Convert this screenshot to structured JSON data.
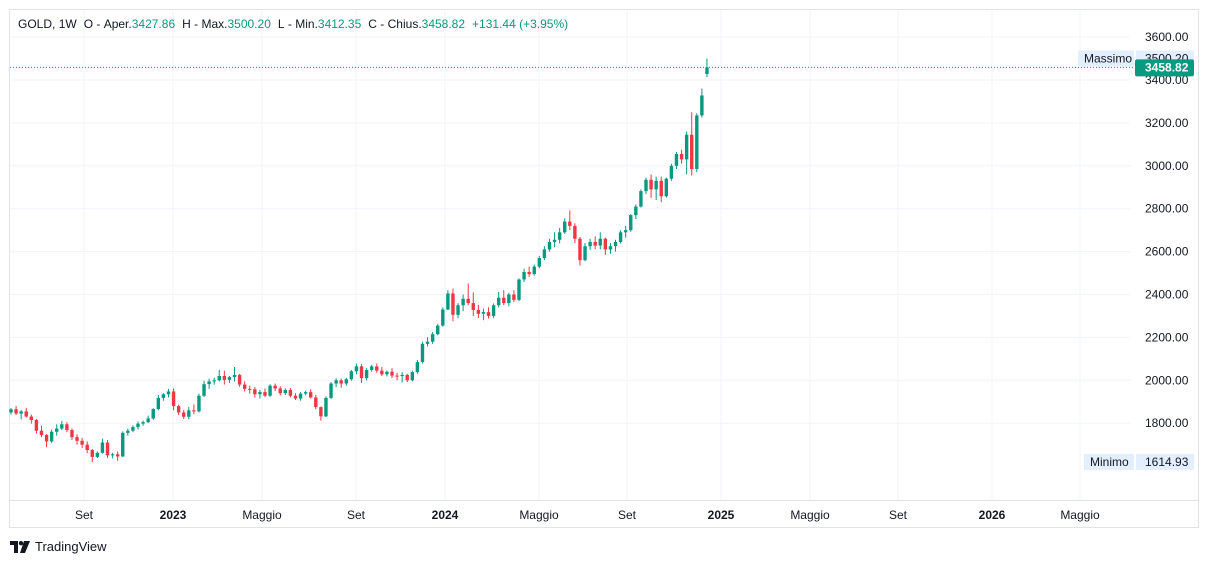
{
  "legend": {
    "symbol": "GOLD",
    "interval": "1W",
    "open_label": "O",
    "open_prefix": "Aper.",
    "open": "3427.86",
    "high_label": "H",
    "high_prefix": "Max.",
    "high": "3500.20",
    "low_label": "L",
    "low_prefix": "Min.",
    "low": "3412.35",
    "close_label": "C",
    "close_prefix": "Chius.",
    "close": "3458.82",
    "change": "+131.44 (+3.95%)"
  },
  "price_axis": {
    "ticks": [
      "3600.00",
      "3400.00",
      "3200.00",
      "3000.00",
      "2800.00",
      "2600.00",
      "2400.00",
      "2200.00",
      "2000.00",
      "1800.00"
    ],
    "high_marker": {
      "label": "Massimo",
      "value": "3500.20"
    },
    "low_marker": {
      "label": "Minimo",
      "value": "1614.93"
    },
    "last_price": "3458.82"
  },
  "time_axis": {
    "labels": [
      "Set",
      "2023",
      "Maggio",
      "Set",
      "2024",
      "Maggio",
      "Set",
      "2025",
      "Maggio",
      "Set",
      "2026",
      "Maggio"
    ],
    "bold_labels": [
      "2023",
      "2024",
      "2025",
      "2026"
    ]
  },
  "colors": {
    "up": "#089981",
    "down": "#f23645",
    "grid": "#f0f3fa",
    "marker_bg": "#e3effd"
  },
  "branding": {
    "name": "TradingView",
    "logo_icon": "tradingview-logo-icon"
  },
  "chart_data": {
    "type": "candlestick",
    "interval": "weekly",
    "x_start_week": "2022-06-27",
    "ylim": [
      1560,
      3660
    ],
    "grid": true,
    "ohlc": [
      [
        1850,
        1870,
        1840,
        1865
      ],
      [
        1865,
        1880,
        1838,
        1845
      ],
      [
        1845,
        1862,
        1818,
        1855
      ],
      [
        1855,
        1872,
        1826,
        1831
      ],
      [
        1831,
        1840,
        1798,
        1815
      ],
      [
        1815,
        1820,
        1752,
        1765
      ],
      [
        1765,
        1788,
        1735,
        1745
      ],
      [
        1745,
        1750,
        1688,
        1715
      ],
      [
        1715,
        1770,
        1708,
        1760
      ],
      [
        1760,
        1795,
        1742,
        1775
      ],
      [
        1775,
        1810,
        1768,
        1795
      ],
      [
        1795,
        1805,
        1758,
        1768
      ],
      [
        1768,
        1775,
        1722,
        1735
      ],
      [
        1735,
        1748,
        1700,
        1718
      ],
      [
        1718,
        1732,
        1685,
        1700
      ],
      [
        1700,
        1715,
        1660,
        1675
      ],
      [
        1675,
        1680,
        1618,
        1643
      ],
      [
        1643,
        1668,
        1638,
        1662
      ],
      [
        1662,
        1728,
        1658,
        1710
      ],
      [
        1710,
        1722,
        1638,
        1650
      ],
      [
        1650,
        1662,
        1636,
        1655
      ],
      [
        1655,
        1668,
        1625,
        1645
      ],
      [
        1645,
        1762,
        1642,
        1755
      ],
      [
        1755,
        1775,
        1742,
        1765
      ],
      [
        1765,
        1790,
        1758,
        1782
      ],
      [
        1782,
        1808,
        1770,
        1798
      ],
      [
        1798,
        1812,
        1788,
        1805
      ],
      [
        1805,
        1835,
        1800,
        1822
      ],
      [
        1822,
        1870,
        1816,
        1866
      ],
      [
        1866,
        1932,
        1860,
        1918
      ],
      [
        1918,
        1940,
        1905,
        1935
      ],
      [
        1935,
        1960,
        1920,
        1948
      ],
      [
        1948,
        1962,
        1860,
        1880
      ],
      [
        1880,
        1886,
        1838,
        1850
      ],
      [
        1850,
        1862,
        1820,
        1830
      ],
      [
        1830,
        1875,
        1818,
        1860
      ],
      [
        1860,
        1888,
        1842,
        1855
      ],
      [
        1855,
        1938,
        1850,
        1928
      ],
      [
        1928,
        1998,
        1922,
        1982
      ],
      [
        1982,
        2008,
        1960,
        1995
      ],
      [
        1995,
        2012,
        1980,
        2000
      ],
      [
        2000,
        2048,
        1995,
        2020
      ],
      [
        2020,
        2045,
        1980,
        2002
      ],
      [
        2002,
        2020,
        1988,
        2015
      ],
      [
        2015,
        2062,
        1995,
        2025
      ],
      [
        2025,
        2030,
        1970,
        1980
      ],
      [
        1980,
        1995,
        1948,
        1960
      ],
      [
        1960,
        1975,
        1938,
        1958
      ],
      [
        1958,
        1968,
        1920,
        1935
      ],
      [
        1935,
        1955,
        1915,
        1945
      ],
      [
        1945,
        1962,
        1922,
        1928
      ],
      [
        1928,
        1982,
        1922,
        1975
      ],
      [
        1975,
        1985,
        1950,
        1962
      ],
      [
        1962,
        1972,
        1930,
        1940
      ],
      [
        1940,
        1962,
        1932,
        1955
      ],
      [
        1955,
        1965,
        1920,
        1928
      ],
      [
        1928,
        1940,
        1908,
        1915
      ],
      [
        1915,
        1945,
        1905,
        1938
      ],
      [
        1938,
        1952,
        1930,
        1945
      ],
      [
        1945,
        1958,
        1915,
        1920
      ],
      [
        1920,
        1932,
        1865,
        1875
      ],
      [
        1875,
        1878,
        1812,
        1832
      ],
      [
        1832,
        1925,
        1828,
        1918
      ],
      [
        1918,
        1992,
        1912,
        1985
      ],
      [
        1985,
        2010,
        1968,
        2000
      ],
      [
        2000,
        2008,
        1965,
        1985
      ],
      [
        1985,
        2012,
        1975,
        2005
      ],
      [
        2005,
        2048,
        1998,
        2042
      ],
      [
        2042,
        2078,
        2028,
        2065
      ],
      [
        2065,
        2075,
        1988,
        2010
      ],
      [
        2010,
        2058,
        2000,
        2048
      ],
      [
        2048,
        2072,
        2040,
        2065
      ],
      [
        2065,
        2078,
        2035,
        2045
      ],
      [
        2045,
        2062,
        2020,
        2028
      ],
      [
        2028,
        2045,
        2018,
        2040
      ],
      [
        2040,
        2056,
        2010,
        2022
      ],
      [
        2022,
        2035,
        2000,
        2020
      ],
      [
        2020,
        2038,
        1990,
        2025
      ],
      [
        2025,
        2030,
        1992,
        2000
      ],
      [
        2000,
        2045,
        1995,
        2038
      ],
      [
        2038,
        2095,
        2030,
        2085
      ],
      [
        2085,
        2180,
        2078,
        2170
      ],
      [
        2170,
        2200,
        2158,
        2180
      ],
      [
        2180,
        2225,
        2170,
        2215
      ],
      [
        2215,
        2262,
        2210,
        2255
      ],
      [
        2255,
        2340,
        2250,
        2330
      ],
      [
        2330,
        2420,
        2328,
        2405
      ],
      [
        2405,
        2428,
        2275,
        2305
      ],
      [
        2305,
        2360,
        2290,
        2350
      ],
      [
        2350,
        2400,
        2322,
        2380
      ],
      [
        2380,
        2452,
        2350,
        2360
      ],
      [
        2360,
        2410,
        2300,
        2328
      ],
      [
        2328,
        2352,
        2290,
        2310
      ],
      [
        2310,
        2335,
        2280,
        2318
      ],
      [
        2318,
        2340,
        2288,
        2300
      ],
      [
        2300,
        2358,
        2290,
        2350
      ],
      [
        2350,
        2412,
        2340,
        2385
      ],
      [
        2385,
        2420,
        2350,
        2360
      ],
      [
        2360,
        2408,
        2345,
        2400
      ],
      [
        2400,
        2420,
        2365,
        2375
      ],
      [
        2375,
        2475,
        2368,
        2470
      ],
      [
        2470,
        2520,
        2458,
        2505
      ],
      [
        2505,
        2530,
        2482,
        2495
      ],
      [
        2495,
        2540,
        2488,
        2530
      ],
      [
        2530,
        2580,
        2522,
        2570
      ],
      [
        2570,
        2625,
        2560,
        2610
      ],
      [
        2610,
        2660,
        2600,
        2645
      ],
      [
        2645,
        2690,
        2620,
        2655
      ],
      [
        2655,
        2710,
        2638,
        2690
      ],
      [
        2690,
        2755,
        2682,
        2740
      ],
      [
        2740,
        2792,
        2700,
        2720
      ],
      [
        2720,
        2732,
        2640,
        2660
      ],
      [
        2660,
        2668,
        2535,
        2560
      ],
      [
        2560,
        2640,
        2555,
        2625
      ],
      [
        2625,
        2660,
        2608,
        2645
      ],
      [
        2645,
        2670,
        2612,
        2628
      ],
      [
        2628,
        2690,
        2610,
        2660
      ],
      [
        2660,
        2665,
        2585,
        2610
      ],
      [
        2610,
        2640,
        2590,
        2625
      ],
      [
        2625,
        2655,
        2600,
        2645
      ],
      [
        2645,
        2700,
        2638,
        2690
      ],
      [
        2690,
        2720,
        2665,
        2700
      ],
      [
        2700,
        2775,
        2692,
        2770
      ],
      [
        2770,
        2820,
        2752,
        2810
      ],
      [
        2810,
        2890,
        2805,
        2882
      ],
      [
        2882,
        2945,
        2868,
        2935
      ],
      [
        2935,
        2960,
        2850,
        2890
      ],
      [
        2890,
        2950,
        2840,
        2930
      ],
      [
        2930,
        2950,
        2830,
        2858
      ],
      [
        2858,
        2945,
        2852,
        2940
      ],
      [
        2940,
        3010,
        2930,
        3000
      ],
      [
        3000,
        3065,
        2985,
        3055
      ],
      [
        3055,
        3075,
        3010,
        3030
      ],
      [
        3030,
        3160,
        2960,
        3145
      ],
      [
        3145,
        3250,
        2955,
        2985
      ],
      [
        2985,
        3245,
        2970,
        3235
      ],
      [
        3235,
        3360,
        3225,
        3328
      ],
      [
        3427.86,
        3500.2,
        3412.35,
        3458.82
      ]
    ]
  }
}
